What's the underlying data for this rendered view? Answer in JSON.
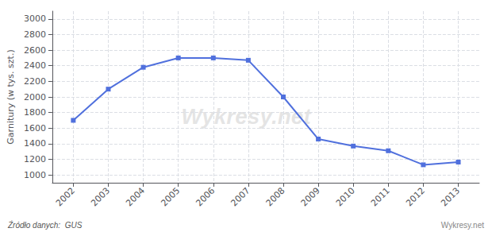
{
  "chart_data": {
    "type": "line",
    "x": [
      2002,
      2003,
      2004,
      2005,
      2006,
      2007,
      2008,
      2009,
      2010,
      2011,
      2012,
      2013
    ],
    "values": [
      1700,
      2100,
      2380,
      2500,
      2500,
      2470,
      2000,
      1460,
      1370,
      1310,
      1130,
      1165
    ],
    "ylabel": "Garnitury (w tys. szt.)",
    "xlim": [
      2001.4,
      2013.6
    ],
    "xticks": [
      2002,
      2003,
      2004,
      2005,
      2006,
      2007,
      2008,
      2009,
      2010,
      2011,
      2012,
      2013
    ],
    "ylim": [
      900,
      3100
    ],
    "yticks": [
      1000,
      1200,
      1400,
      1600,
      1800,
      2000,
      2200,
      2400,
      2600,
      2800,
      3000
    ],
    "marker": "square",
    "grid": true,
    "annotations": [
      "Wykresy.net",
      "Źródło danych:  GUS",
      "Wykresy.net"
    ]
  }
}
